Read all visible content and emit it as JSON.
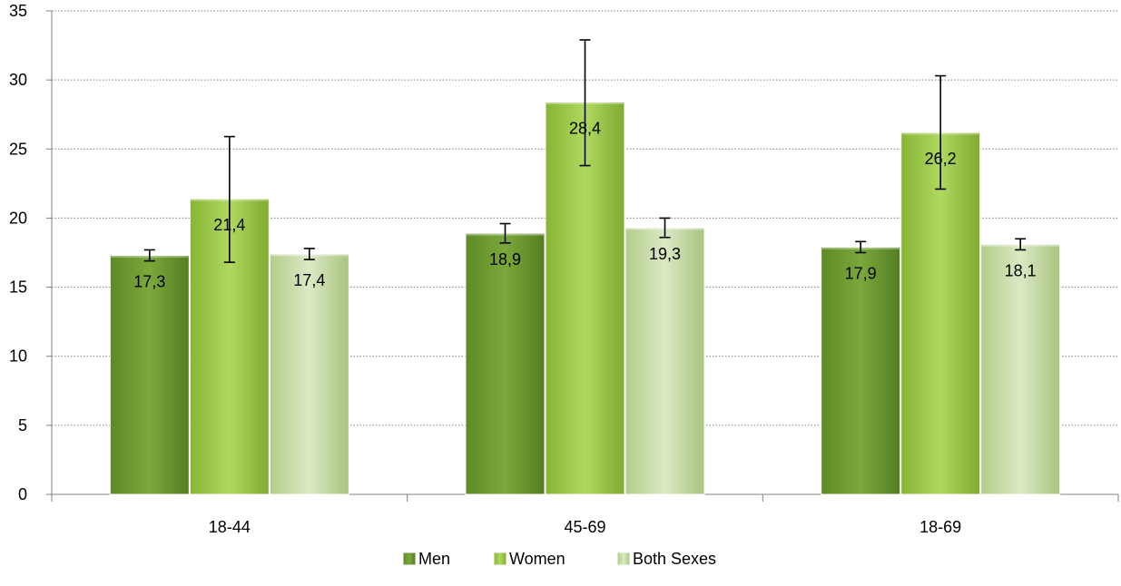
{
  "chart_data": {
    "type": "bar",
    "title": "",
    "xlabel": "",
    "ylabel": "",
    "categories": [
      "18-44",
      "45-69",
      "18-69"
    ],
    "ylim": [
      0,
      35
    ],
    "yticks": [
      0,
      5,
      10,
      15,
      20,
      25,
      30,
      35
    ],
    "grid": "horizontal dotted",
    "legend_position": "bottom",
    "series": [
      {
        "name": "Men",
        "color": "#6b9a30",
        "values": [
          17.3,
          18.9,
          17.9
        ],
        "value_labels": [
          "17,3",
          "18,9",
          "17,9"
        ],
        "error_low": [
          16.9,
          18.2,
          17.5
        ],
        "error_high": [
          17.7,
          19.6,
          18.3
        ]
      },
      {
        "name": "Women",
        "color": "#9fcb4a",
        "values": [
          21.4,
          28.4,
          26.2
        ],
        "value_labels": [
          "21,4",
          "28,4",
          "26,2"
        ],
        "error_low": [
          16.8,
          23.8,
          22.1
        ],
        "error_high": [
          25.9,
          32.9,
          30.3
        ]
      },
      {
        "name": "Both Sexes",
        "color": "#c5dba3",
        "values": [
          17.4,
          19.3,
          18.1
        ],
        "value_labels": [
          "17,4",
          "19,3",
          "18,1"
        ],
        "error_low": [
          17.0,
          18.6,
          17.7
        ],
        "error_high": [
          17.8,
          20.0,
          18.5
        ]
      }
    ]
  }
}
